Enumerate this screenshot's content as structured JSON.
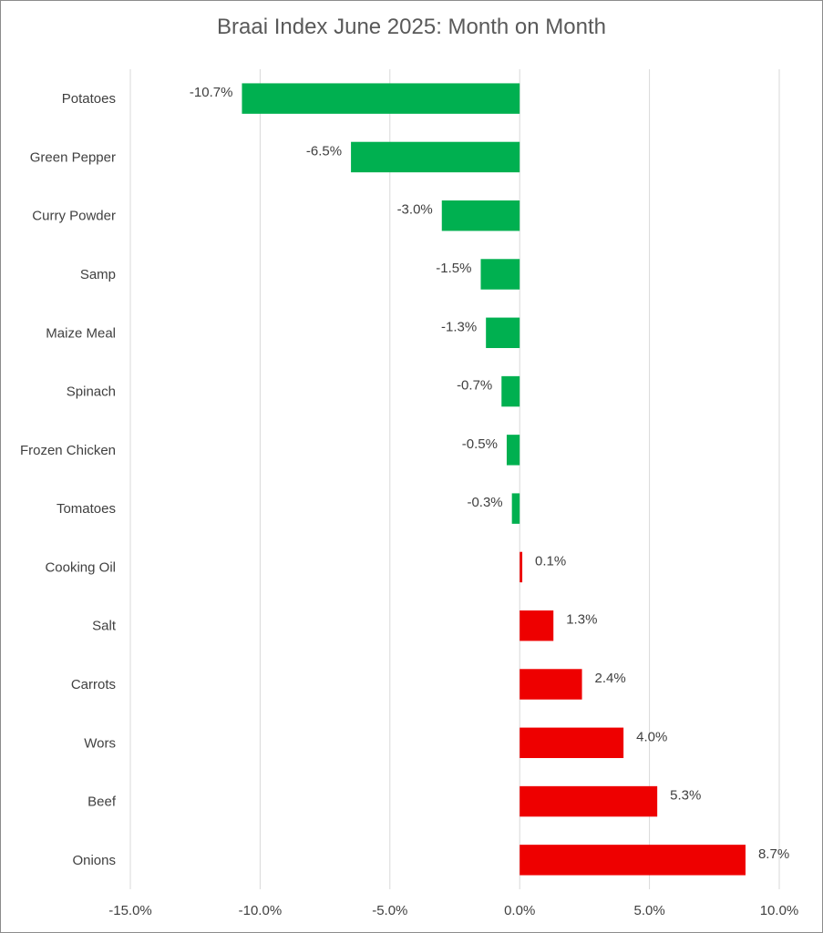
{
  "chart_data": {
    "type": "bar",
    "orientation": "horizontal",
    "title": "Braai Index June 2025: Month on Month",
    "xlabel": "",
    "ylabel": "",
    "categories": [
      "Potatoes",
      "Green Pepper",
      "Curry Powder",
      "Samp",
      "Maize Meal",
      "Spinach",
      "Frozen Chicken",
      "Tomatoes",
      "Cooking Oil",
      "Salt",
      "Carrots",
      "Wors",
      "Beef",
      "Onions"
    ],
    "values": [
      -10.7,
      -6.5,
      -3.0,
      -1.5,
      -1.3,
      -0.7,
      -0.5,
      -0.3,
      0.1,
      1.3,
      2.4,
      4.0,
      5.3,
      8.7
    ],
    "value_labels": [
      "-10.7%",
      "-6.5%",
      "-3.0%",
      "-1.5%",
      "-1.3%",
      "-0.7%",
      "-0.5%",
      "-0.3%",
      "0.1%",
      "1.3%",
      "2.4%",
      "4.0%",
      "5.3%",
      "8.7%"
    ],
    "xlim": [
      -15,
      10
    ],
    "xticks": [
      -15,
      -10,
      -5,
      0,
      5,
      10
    ],
    "xtick_labels": [
      "-15.0%",
      "-10.0%",
      "-5.0%",
      "0.0%",
      "5.0%",
      "10.0%"
    ],
    "grid": "vertical",
    "legend": "none",
    "colors": {
      "negative": "#00b050",
      "positive": "#ee0000",
      "grid": "#d9d9d9"
    }
  }
}
